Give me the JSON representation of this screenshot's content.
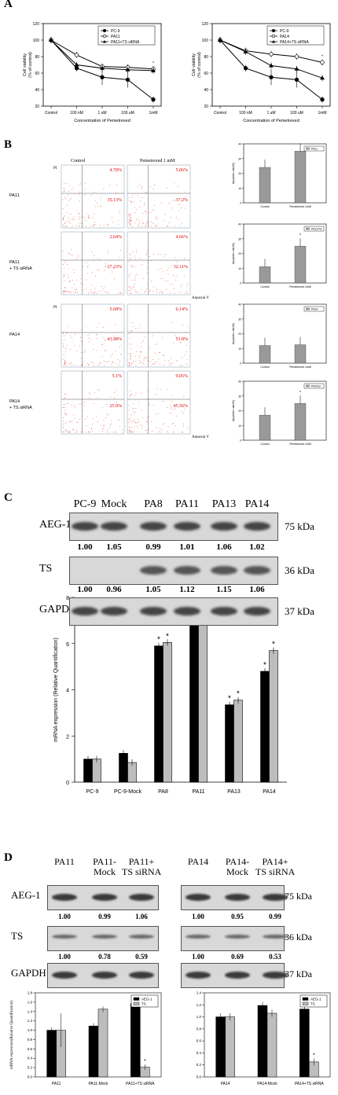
{
  "panels": {
    "a": "A",
    "b": "B",
    "c": "C",
    "d": "D"
  },
  "panel_a": {
    "left": {
      "ylabel": "Cell viability\n(% of control)",
      "xlabel": "Concentration of Pemetrexed",
      "legend": [
        "PC-9",
        "PA11",
        "PA11+TS siRNA"
      ],
      "categories": [
        "Control",
        "100 nM",
        "1 uM",
        "100 uM",
        "1mM"
      ],
      "yticks": [
        "20",
        "40",
        "60",
        "80",
        "100",
        "120"
      ],
      "star": "*"
    },
    "right": {
      "ylabel": "Cell viability\n(% of control)",
      "xlabel": "Concentration of Pemetrexed",
      "legend": [
        "PC-9",
        "PA14",
        "PA14+TS siRNA"
      ],
      "categories": [
        "Control",
        "100 nM",
        "1 uM",
        "100 uM",
        "1mM"
      ],
      "yticks": [
        "20",
        "40",
        "60",
        "80",
        "100",
        "120"
      ],
      "star": "*"
    }
  },
  "panel_b": {
    "col_headers": [
      "Control",
      "Pemetrexed 1 mM"
    ],
    "row_labels": [
      "PA11",
      "PA11\n+ TS siRNA",
      "PA14",
      "PA14\n+ TS siRNA"
    ],
    "pi_label": "PI",
    "annexin_label": "Annexin V",
    "quadrants": [
      [
        [
          "4.78%",
          "35.13%"
        ],
        [
          "5.06%",
          "37.2%"
        ]
      ],
      [
        [
          "2.64%",
          "17.23%"
        ],
        [
          "4.66%",
          "32.11%"
        ]
      ],
      [
        [
          "5.68%",
          "43.58%"
        ],
        [
          "6.14%",
          "53.8%"
        ]
      ],
      [
        [
          "5.1%",
          "25.9%"
        ],
        [
          "9.05%",
          "45.56%"
        ]
      ]
    ],
    "axis_ticks": [
      "10⁰",
      "10¹",
      "10²",
      "10³",
      "10⁴"
    ],
    "bar_legends": [
      "PA11",
      "PA11/TS",
      "PA14",
      "PA14/si"
    ],
    "bar_xlabels": [
      "Control",
      "Pemetrexed 1mM"
    ],
    "bar_ylabel": "Apoptotic rate(%)",
    "star": "*"
  },
  "panel_c": {
    "lanes": [
      "PC-9",
      "Mock",
      "PA8",
      "PA11",
      "PA13",
      "PA14"
    ],
    "rows": [
      "AEG-1",
      "TS",
      "GAPDH"
    ],
    "kda": [
      "75 kDa",
      "36 kDa",
      "37 kDa"
    ],
    "quant_aeg1": [
      "1.00",
      "1.05",
      "0.99",
      "1.01",
      "1.06",
      "1.02"
    ],
    "quant_ts": [
      "1.00",
      "0.96",
      "1.05",
      "1.12",
      "1.15",
      "1.06"
    ]
  },
  "chart_data": [
    {
      "type": "line",
      "title": "",
      "xlabel": "Concentration of Pemetrexed",
      "ylabel": "Cell viability (% of control)",
      "categories": [
        "Control",
        "100 nM",
        "1 uM",
        "100 uM",
        "1mM"
      ],
      "ylim": [
        20,
        120
      ],
      "series": [
        {
          "name": "PC-9",
          "values": [
            100,
            66,
            55,
            52,
            28
          ]
        },
        {
          "name": "PA11",
          "values": [
            100,
            82,
            68,
            67,
            65
          ]
        },
        {
          "name": "PA11+TS siRNA",
          "values": [
            100,
            70,
            66,
            64,
            63
          ]
        }
      ]
    },
    {
      "type": "line",
      "title": "",
      "xlabel": "Concentration of Pemetrexed",
      "ylabel": "Cell viability (% of control)",
      "categories": [
        "Control",
        "100 nM",
        "1 uM",
        "100 uM",
        "1mM"
      ],
      "ylim": [
        20,
        120
      ],
      "series": [
        {
          "name": "PC-9",
          "values": [
            100,
            66,
            55,
            52,
            28
          ]
        },
        {
          "name": "PA14",
          "values": [
            100,
            87,
            83,
            80,
            73
          ]
        },
        {
          "name": "PA14+TS siRNA",
          "values": [
            100,
            86,
            69,
            65,
            54
          ]
        }
      ]
    },
    {
      "type": "bar",
      "title": "",
      "ylabel": "mRNA expression (Relative Quantification)",
      "categories": [
        "PC-9",
        "PC-9-Mock",
        "PA8",
        "PA11",
        "PA13",
        "PA14"
      ],
      "ylim": [
        0,
        8
      ],
      "yticks": [
        "0",
        "2",
        "4",
        "6",
        "8"
      ],
      "legend": "top-right",
      "series": [
        {
          "name": "AEG-1",
          "color": "#000000",
          "values": [
            1.0,
            1.25,
            5.9,
            6.8,
            3.35,
            4.8
          ]
        },
        {
          "name": "TS",
          "color": "#bdbdbd",
          "values": [
            1.0,
            0.85,
            6.05,
            7.35,
            3.55,
            5.7
          ]
        }
      ],
      "annotations": [
        "*"
      ]
    },
    {
      "type": "bar",
      "title": "",
      "ylabel": "mRNA expression(Relative Quantification)",
      "categories": [
        "PA11",
        "PA11-Mock",
        "PA11+TS siRNA"
      ],
      "ylim": [
        0,
        1.8
      ],
      "yticks": [
        "0.0",
        "0.2",
        "0.4",
        "0.6",
        "0.8",
        "1.0",
        "1.2",
        "1.4",
        "1.6",
        "1.8"
      ],
      "series": [
        {
          "name": "AEG-1",
          "color": "#000000",
          "values": [
            1.0,
            1.09,
            1.57
          ]
        },
        {
          "name": "TS",
          "color": "#bdbdbd",
          "values": [
            1.0,
            1.45,
            0.21
          ]
        }
      ],
      "annotations": [
        "*"
      ]
    },
    {
      "type": "bar",
      "title": "",
      "ylabel": "",
      "categories": [
        "PA14",
        "PA14-Mock",
        "PA14+TS siRNA"
      ],
      "ylim": [
        0,
        1.4
      ],
      "yticks": [
        "0.0",
        "0.2",
        "0.4",
        "0.6",
        "0.8",
        "1.0",
        "1.2",
        "1.4"
      ],
      "series": [
        {
          "name": "AEG-1",
          "color": "#000000",
          "values": [
            1.0,
            1.19,
            1.13
          ]
        },
        {
          "name": "TS",
          "color": "#bdbdbd",
          "values": [
            1.0,
            1.06,
            0.25
          ]
        }
      ],
      "annotations": [
        "*"
      ]
    },
    {
      "type": "bar",
      "title": "",
      "ylabel": "Apoptotic rate(%)",
      "categories": [
        "Control",
        "Pemetrexed 1mM"
      ],
      "series": [
        {
          "name": "PA11",
          "values": [
            24,
            35
          ]
        }
      ]
    },
    {
      "type": "bar",
      "title": "",
      "ylabel": "Apoptotic rate(%)",
      "categories": [
        "Control",
        "Pemetrexed 1mM"
      ],
      "series": [
        {
          "name": "PA11/TS",
          "values": [
            11,
            25
          ]
        }
      ]
    },
    {
      "type": "bar",
      "title": "",
      "ylabel": "Apoptotic rate(%)",
      "categories": [
        "Control",
        "Pemetrexed 1mM"
      ],
      "series": [
        {
          "name": "PA14",
          "values": [
            12,
            12.5
          ]
        }
      ]
    },
    {
      "type": "bar",
      "title": "",
      "ylabel": "Apoptotic rate(%)",
      "categories": [
        "Control",
        "Pemetrexed 1mM"
      ],
      "series": [
        {
          "name": "PA14/si",
          "values": [
            17,
            25
          ]
        }
      ]
    }
  ],
  "panel_d": {
    "left_lanes": [
      "PA11",
      "PA11-\nMock",
      "PA11+\nTS siRNA"
    ],
    "right_lanes": [
      "PA14",
      "PA14-\nMock",
      "PA14+\nTS siRNA"
    ],
    "rows": [
      "AEG-1",
      "TS",
      "GAPDH"
    ],
    "kda": [
      "75 kDa",
      "36 kDa",
      "37 kDa"
    ],
    "left_aeg1": [
      "1.00",
      "0.99",
      "1.06"
    ],
    "left_ts": [
      "1.00",
      "0.78",
      "0.59"
    ],
    "right_aeg1": [
      "1.00",
      "0.95",
      "0.99"
    ],
    "right_ts": [
      "1.00",
      "0.69",
      "0.53"
    ],
    "legend": [
      "AEG-1",
      "TS"
    ]
  }
}
